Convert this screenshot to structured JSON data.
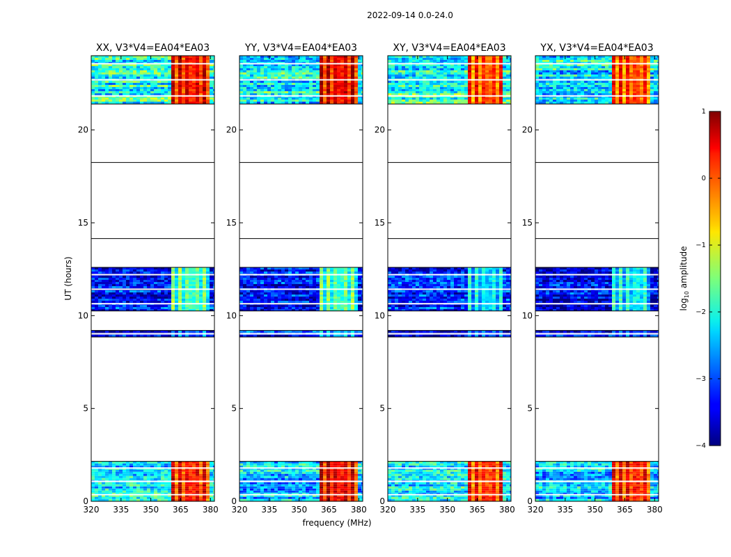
{
  "chart_data": {
    "type": "heatmap",
    "suptitle": "2022-09-14 0.0-24.0",
    "xlabel": "frequency (MHz)",
    "ylabel": "UT (hours)",
    "xlim": [
      320,
      382
    ],
    "ylim": [
      0,
      24
    ],
    "xticks": [
      320,
      335,
      350,
      365,
      380
    ],
    "yticks": [
      0,
      5,
      10,
      15,
      20
    ],
    "colormap": "jet",
    "colorbar": {
      "label": "log",
      "label_sub": "10",
      "label_tail": " amplitude",
      "ticks": [
        1,
        0,
        -1,
        -2,
        -3,
        -4
      ],
      "tick_labels": [
        "1",
        "0",
        "−1",
        "−2",
        "−3",
        "−4"
      ],
      "vmin": -4,
      "vmax": 1
    },
    "blanked_bands_ut_hours": [
      [
        2.15,
        8.85
      ],
      [
        9.2,
        10.25
      ],
      [
        12.6,
        21.4
      ]
    ],
    "band_separator_lines_ut_hours": [
      18.25,
      14.15
    ],
    "panels": [
      {
        "title": "XX, V3*V4=EA04*EA03",
        "data_blocks": [
          {
            "ut": [
              0.0,
              2.15
            ],
            "rfi_band_mhz": [
              360,
              380
            ],
            "rfi_level": 0.2,
            "background_level": -2.3
          },
          {
            "ut": [
              8.85,
              9.2
            ],
            "rfi_band_mhz": [
              360,
              380
            ],
            "rfi_level": -3.0,
            "background_level": -3.3
          },
          {
            "ut": [
              10.25,
              12.6
            ],
            "rfi_band_mhz": [
              360,
              380
            ],
            "rfi_level": -1.8,
            "background_level": -3.4
          },
          {
            "ut": [
              21.4,
              24.0
            ],
            "rfi_band_mhz": [
              360,
              380
            ],
            "rfi_level": 0.3,
            "background_level": -2.0
          }
        ]
      },
      {
        "title": "YY, V3*V4=EA04*EA03",
        "data_blocks": [
          {
            "ut": [
              0.0,
              2.15
            ],
            "rfi_band_mhz": [
              360,
              380
            ],
            "rfi_level": 0.4,
            "background_level": -2.4
          },
          {
            "ut": [
              8.85,
              9.2
            ],
            "rfi_band_mhz": [
              360,
              380
            ],
            "rfi_level": -2.5,
            "background_level": -3.3
          },
          {
            "ut": [
              10.25,
              12.6
            ],
            "rfi_band_mhz": [
              360,
              380
            ],
            "rfi_level": -1.8,
            "background_level": -3.4
          },
          {
            "ut": [
              21.4,
              24.0
            ],
            "rfi_band_mhz": [
              360,
              380
            ],
            "rfi_level": 0.4,
            "background_level": -2.1
          }
        ]
      },
      {
        "title": "XY, V3*V4=EA04*EA03",
        "data_blocks": [
          {
            "ut": [
              0.0,
              2.15
            ],
            "rfi_band_mhz": [
              360,
              377
            ],
            "rfi_level": 0.1,
            "background_level": -2.2
          },
          {
            "ut": [
              8.85,
              9.2
            ],
            "rfi_band_mhz": [
              360,
              377
            ],
            "rfi_level": -3.0,
            "background_level": -3.3
          },
          {
            "ut": [
              10.25,
              12.6
            ],
            "rfi_band_mhz": [
              360,
              377
            ],
            "rfi_level": -2.3,
            "background_level": -3.3
          },
          {
            "ut": [
              21.4,
              24.0
            ],
            "rfi_band_mhz": [
              360,
              377
            ],
            "rfi_level": 0.0,
            "background_level": -2.0
          }
        ]
      },
      {
        "title": "YX, V3*V4=EA04*EA03",
        "data_blocks": [
          {
            "ut": [
              0.0,
              2.15
            ],
            "rfi_band_mhz": [
              358,
              377
            ],
            "rfi_level": 0.2,
            "background_level": -2.4
          },
          {
            "ut": [
              8.85,
              9.2
            ],
            "rfi_band_mhz": [
              358,
              377
            ],
            "rfi_level": -3.0,
            "background_level": -3.3
          },
          {
            "ut": [
              10.25,
              12.6
            ],
            "rfi_band_mhz": [
              358,
              377
            ],
            "rfi_level": -2.2,
            "background_level": -3.4
          },
          {
            "ut": [
              21.4,
              24.0
            ],
            "rfi_band_mhz": [
              358,
              377
            ],
            "rfi_level": 0.0,
            "background_level": -2.2
          }
        ]
      }
    ]
  }
}
